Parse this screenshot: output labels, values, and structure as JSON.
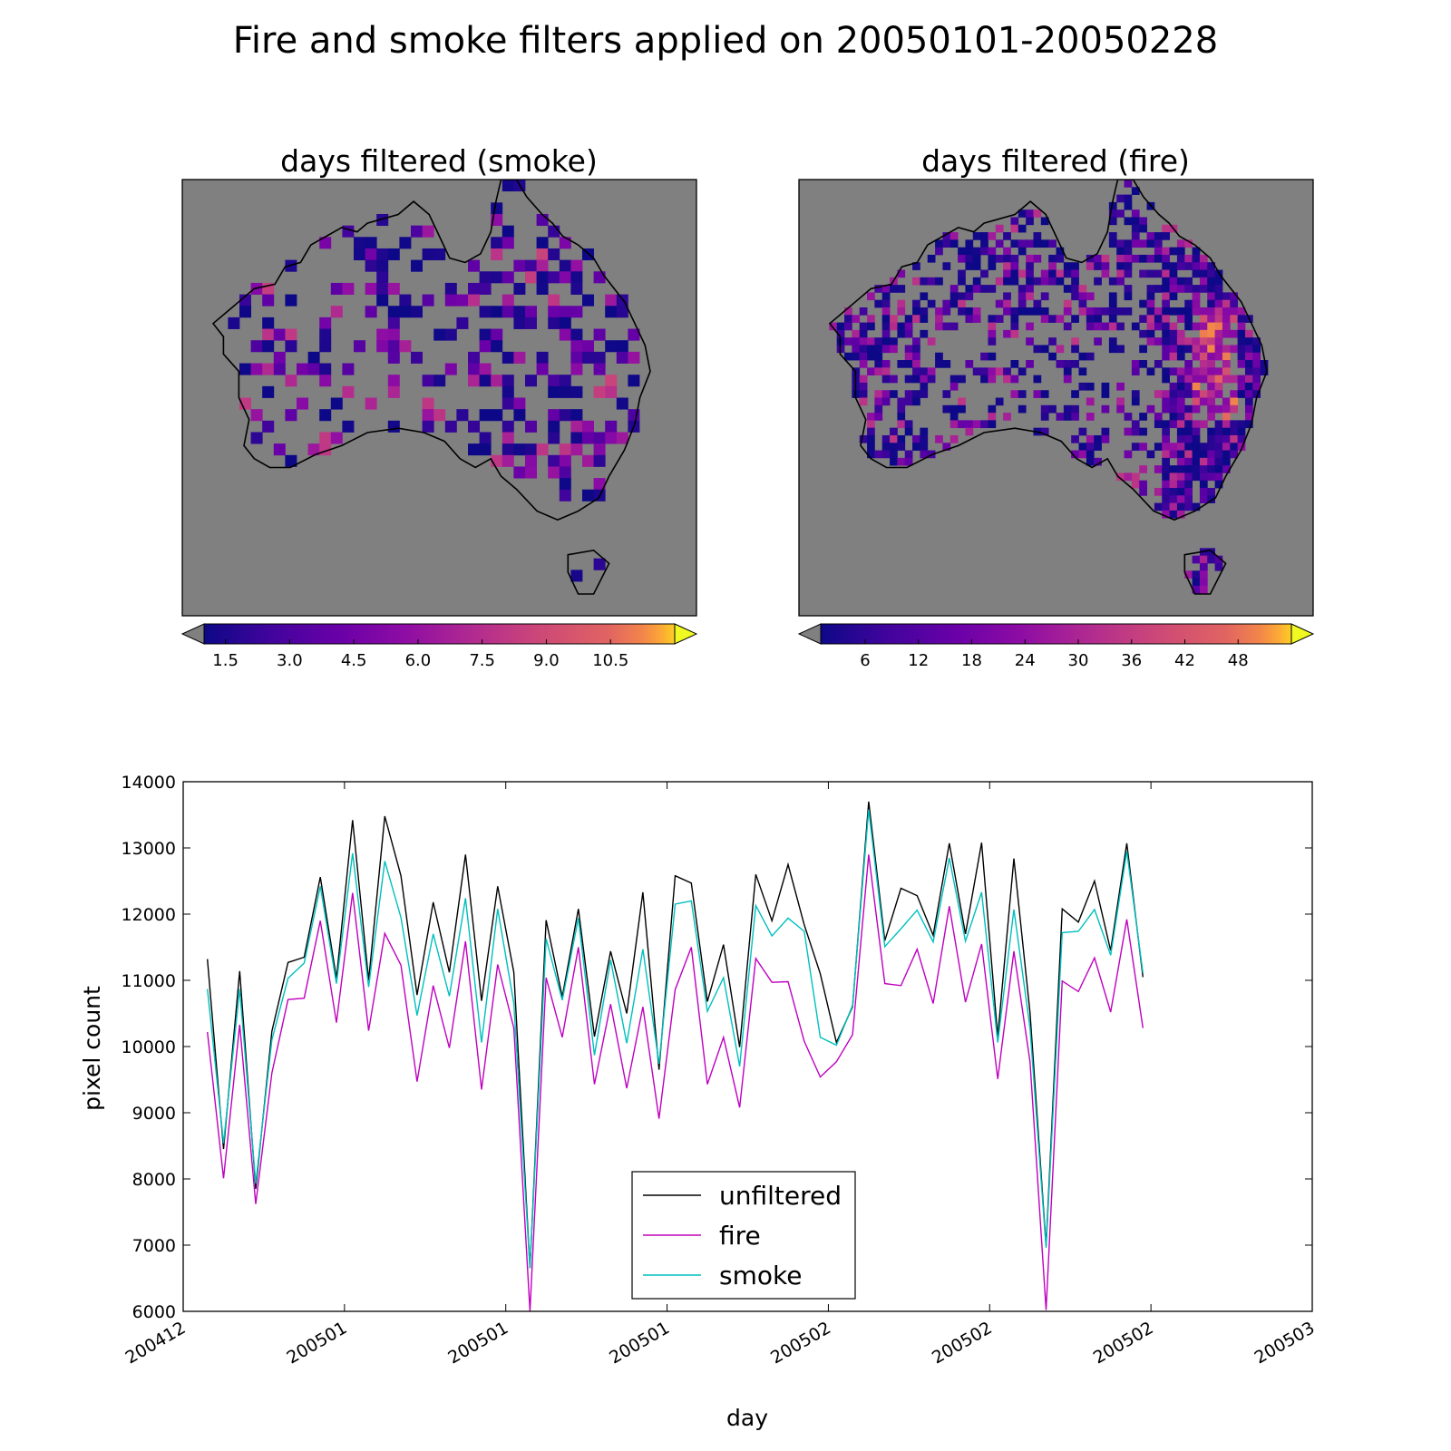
{
  "figure": {
    "title": "Fire and smoke filters applied on 20050101-20050228"
  },
  "maps": [
    {
      "title": "days filtered (smoke)",
      "colormap": "plasma",
      "background_color": "#808080",
      "coastline_color": "#000000",
      "colorbar": {
        "ticks": [
          "1.5",
          "3.0",
          "4.5",
          "6.0",
          "7.5",
          "9.0",
          "10.5"
        ],
        "tick_values": [
          1.5,
          3.0,
          4.5,
          6.0,
          7.5,
          9.0,
          10.5
        ],
        "vmin": 1.0,
        "vmax": 12.0,
        "extend": "both",
        "under_color": "#808080"
      }
    },
    {
      "title": "days filtered (fire)",
      "colormap": "plasma",
      "background_color": "#808080",
      "coastline_color": "#000000",
      "colorbar": {
        "ticks": [
          "6",
          "12",
          "18",
          "24",
          "30",
          "36",
          "42",
          "48"
        ],
        "tick_values": [
          6,
          12,
          18,
          24,
          30,
          36,
          42,
          48
        ],
        "vmin": 1.0,
        "vmax": 54.0,
        "extend": "both",
        "under_color": "#808080"
      }
    }
  ],
  "chart_data": {
    "type": "line",
    "xlabel": "day",
    "ylabel": "pixel count",
    "x_tick_labels": [
      "200412",
      "200501",
      "200501",
      "200501",
      "200502",
      "200502",
      "200502",
      "200503"
    ],
    "xlim": [
      -1.5,
      68.5
    ],
    "ylim": [
      6000,
      14000
    ],
    "y_ticks": [
      6000,
      7000,
      8000,
      9000,
      10000,
      11000,
      12000,
      13000,
      14000
    ],
    "grid": false,
    "legend_position": "lower-center",
    "series": [
      {
        "name": "unfiltered",
        "color": "#000000",
        "values": [
          11320,
          8450,
          11140,
          7850,
          10230,
          11270,
          11350,
          12560,
          11030,
          13420,
          11000,
          13480,
          12580,
          10780,
          12180,
          11120,
          12900,
          10690,
          12420,
          11120,
          6650,
          11910,
          10750,
          12080,
          10150,
          11440,
          10500,
          12330,
          9650,
          12580,
          12470,
          10680,
          11540,
          9990,
          12600,
          11900,
          12750,
          11840,
          11100,
          10060,
          10600,
          13700,
          11600,
          12390,
          12280,
          11680,
          13070,
          11700,
          13080,
          10150,
          12840,
          10510,
          6990,
          12080,
          11880,
          12500,
          11450,
          13070,
          11050
        ]
      },
      {
        "name": "fire",
        "color": "#bf00bf",
        "values": [
          10220,
          8010,
          10330,
          7620,
          9600,
          10710,
          10730,
          11900,
          10360,
          12320,
          10240,
          11710,
          11230,
          9470,
          10920,
          9980,
          11590,
          9350,
          11240,
          10280,
          6000,
          11040,
          10140,
          11500,
          9430,
          10640,
          9370,
          10600,
          8910,
          10860,
          11500,
          9430,
          10140,
          9080,
          11330,
          10970,
          10980,
          10080,
          9540,
          9770,
          10180,
          12900,
          10950,
          10920,
          11470,
          10650,
          12120,
          10670,
          11550,
          9510,
          11440,
          9770,
          6020,
          10990,
          10830,
          11340,
          10520,
          11920,
          10280
        ]
      },
      {
        "name": "smoke",
        "color": "#00bfbf",
        "values": [
          10870,
          8540,
          10870,
          7930,
          10100,
          11030,
          11260,
          12420,
          10950,
          12920,
          10900,
          12800,
          11950,
          10470,
          11700,
          10760,
          12240,
          10060,
          12080,
          10650,
          6650,
          11630,
          10700,
          11940,
          9870,
          11310,
          10050,
          11470,
          9740,
          12150,
          12200,
          10530,
          11040,
          9700,
          12130,
          11670,
          11940,
          11740,
          10140,
          10020,
          10620,
          13580,
          11510,
          11780,
          12060,
          11580,
          12850,
          11590,
          12330,
          10060,
          12070,
          10280,
          6960,
          11720,
          11740,
          12070,
          11380,
          12950,
          11110
        ]
      }
    ]
  }
}
